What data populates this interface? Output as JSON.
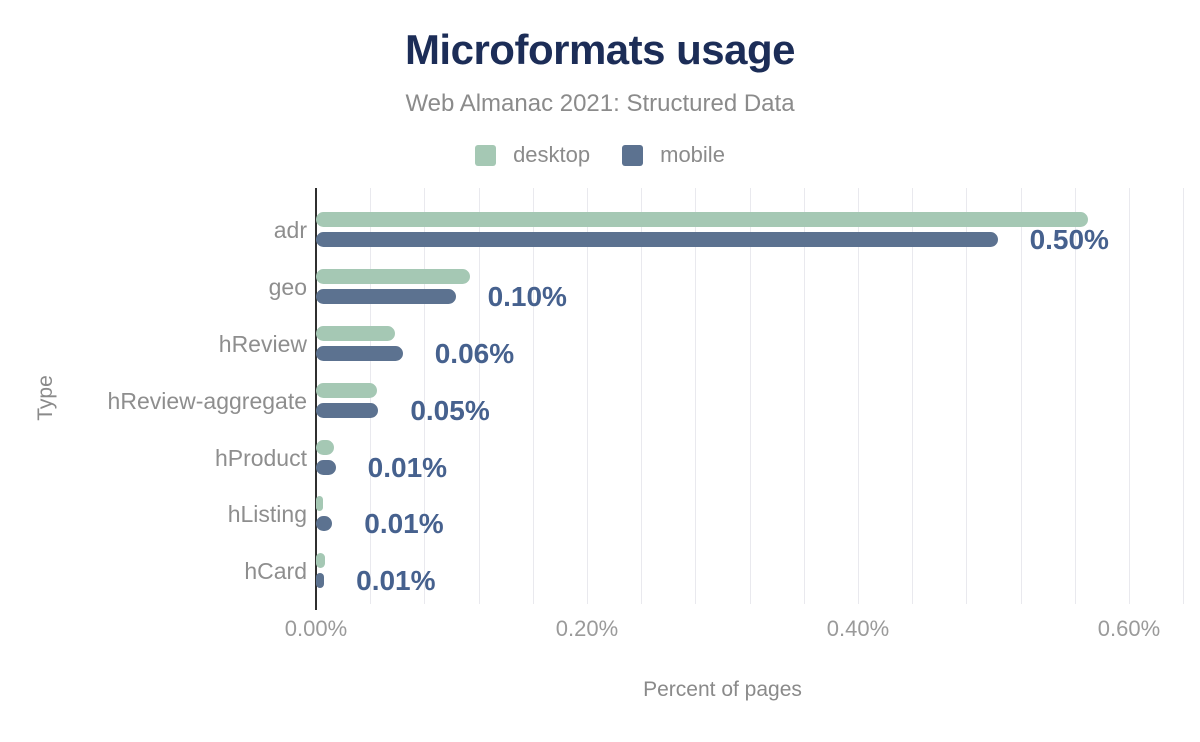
{
  "chart_data": {
    "type": "bar",
    "orientation": "horizontal",
    "title": "Microformats usage",
    "subtitle": "Web Almanac 2021: Structured Data",
    "xlabel": "Percent of pages",
    "ylabel": "Type",
    "categories": [
      "adr",
      "geo",
      "hReview",
      "hReview-aggregate",
      "hProduct",
      "hListing",
      "hCard"
    ],
    "series": [
      {
        "name": "desktop",
        "color": "#a5c8b4",
        "values": [
          0.57,
          0.114,
          0.058,
          0.045,
          0.013,
          0.005,
          0.007
        ]
      },
      {
        "name": "mobile",
        "color": "#5c7290",
        "values": [
          0.503,
          0.103,
          0.064,
          0.046,
          0.0145,
          0.012,
          0.006
        ]
      }
    ],
    "value_labels": [
      "0.50%",
      "0.10%",
      "0.06%",
      "0.05%",
      "0.01%",
      "0.01%",
      "0.01%"
    ],
    "x_ticks": [
      {
        "value": 0.0,
        "label": "0.00%"
      },
      {
        "value": 0.2,
        "label": "0.20%"
      },
      {
        "value": 0.4,
        "label": "0.40%"
      },
      {
        "value": 0.6,
        "label": "0.60%"
      }
    ],
    "xlim": [
      0,
      0.644
    ],
    "grid_step": 0.04,
    "grid": true,
    "legend_position": "top"
  },
  "colors": {
    "title": "#1c2d57",
    "subtitle": "#8b8b8b",
    "desktop_bar": "#a5c8b4",
    "mobile_bar": "#5c7290",
    "value_label": "#46618e",
    "gridline": "#e9e9ee",
    "axis_line": "#2f2f2f",
    "tick_label": "#9a9a9a",
    "category_label": "#8e8e8e",
    "background": "#ffffff"
  }
}
